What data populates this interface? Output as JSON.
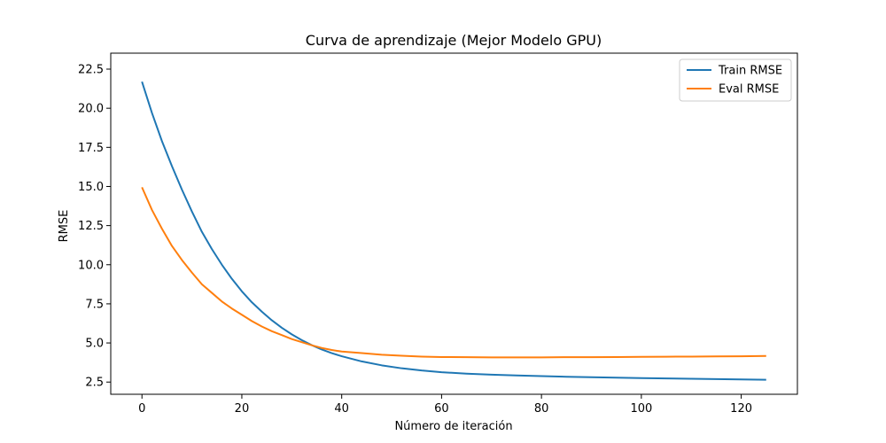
{
  "chart_data": {
    "type": "line",
    "title": "Curva de aprendizaje (Mejor Modelo GPU)",
    "xlabel": "Número de iteración",
    "ylabel": "RMSE",
    "xlim": [
      -6.25,
      131.25
    ],
    "ylim": [
      1.72,
      23.52
    ],
    "xticks": [
      0,
      20,
      40,
      60,
      80,
      100,
      120
    ],
    "yticks": [
      2.5,
      5.0,
      7.5,
      10.0,
      12.5,
      15.0,
      17.5,
      20.0,
      22.5
    ],
    "ytick_labels": [
      "2.5",
      "5.0",
      "7.5",
      "10.0",
      "12.5",
      "15.0",
      "17.5",
      "20.0",
      "22.5"
    ],
    "grid": false,
    "legend_position": "top-right",
    "series": [
      {
        "name": "Train RMSE",
        "color": "#1f77b4",
        "x": [
          0,
          2,
          4,
          6,
          8,
          10,
          12,
          14,
          16,
          18,
          20,
          22,
          24,
          26,
          28,
          30,
          32,
          34,
          36,
          38,
          40,
          44,
          48,
          52,
          56,
          60,
          65,
          70,
          75,
          80,
          85,
          90,
          95,
          100,
          105,
          110,
          115,
          120,
          125
        ],
        "y": [
          21.7,
          19.7,
          17.9,
          16.3,
          14.8,
          13.4,
          12.1,
          11.0,
          10.0,
          9.1,
          8.3,
          7.6,
          7.0,
          6.45,
          5.97,
          5.55,
          5.18,
          4.86,
          4.58,
          4.35,
          4.15,
          3.82,
          3.57,
          3.38,
          3.24,
          3.13,
          3.04,
          2.97,
          2.92,
          2.88,
          2.84,
          2.81,
          2.78,
          2.75,
          2.73,
          2.71,
          2.69,
          2.67,
          2.65
        ]
      },
      {
        "name": "Eval RMSE",
        "color": "#ff7f0e",
        "x": [
          0,
          2,
          4,
          6,
          8,
          10,
          12,
          14,
          16,
          18,
          20,
          22,
          24,
          26,
          28,
          30,
          32,
          34,
          36,
          38,
          40,
          44,
          48,
          52,
          56,
          60,
          65,
          70,
          75,
          80,
          85,
          90,
          95,
          100,
          105,
          110,
          115,
          120,
          125
        ],
        "y": [
          14.95,
          13.5,
          12.3,
          11.2,
          10.3,
          9.5,
          8.75,
          8.2,
          7.65,
          7.2,
          6.8,
          6.4,
          6.05,
          5.75,
          5.5,
          5.25,
          5.05,
          4.85,
          4.68,
          4.55,
          4.45,
          4.35,
          4.25,
          4.18,
          4.13,
          4.1,
          4.09,
          4.08,
          4.08,
          4.08,
          4.09,
          4.09,
          4.1,
          4.11,
          4.12,
          4.13,
          4.14,
          4.15,
          4.17
        ]
      }
    ]
  }
}
